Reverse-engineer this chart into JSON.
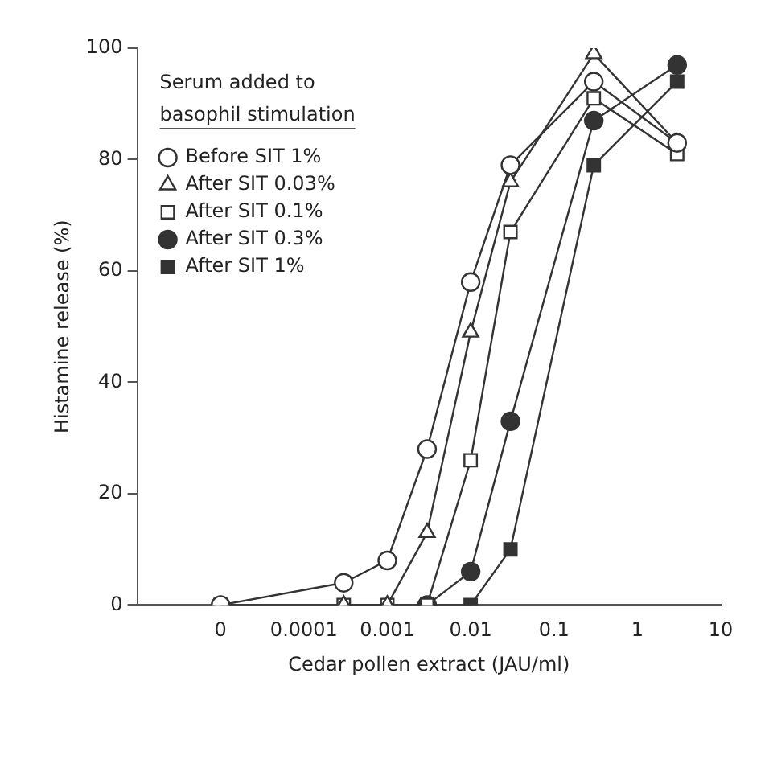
{
  "chart_data": {
    "type": "line",
    "xlabel": "Cedar pollen extract (JAU/ml)",
    "ylabel": "Histamine release (%)",
    "log": "x",
    "legend": "top left",
    "legend_title": "Serum added to\nbasophil stimulation",
    "grid": false,
    "x": [
      1e-05,
      0.0003,
      0.001,
      0.003,
      0.01,
      0.03,
      0.3,
      3
    ],
    "xlim": [
      1e-06,
      10
    ],
    "xticks": [
      {
        "value": 1e-05,
        "label": "0"
      },
      0.0001,
      0.001,
      0.01,
      0.1,
      1,
      10
    ],
    "ylim": [
      0,
      100
    ],
    "yticks": [
      0,
      20,
      40,
      60,
      80,
      100
    ],
    "series": [
      {
        "name": "Before SIT 1%",
        "color": "#ffffff",
        "marker": "circle",
        "values": [
          0,
          4,
          8,
          28,
          58,
          79,
          94,
          83
        ]
      },
      {
        "name": "After SIT 0.03%",
        "color": "#ffffff",
        "marker": "triangle",
        "values": [
          null,
          0,
          0,
          13,
          49,
          76,
          99,
          83
        ]
      },
      {
        "name": "After SIT 0.1%",
        "color": "#ffffff",
        "marker": "square",
        "values": [
          0,
          0,
          0,
          0,
          26,
          67,
          91,
          81
        ]
      },
      {
        "name": "After SIT 0.3%",
        "color": "#333333",
        "marker": "circle",
        "values": [
          null,
          null,
          null,
          0,
          6,
          33,
          87,
          97
        ]
      },
      {
        "name": "After SIT 1%",
        "color": "#333333",
        "marker": "square",
        "values": [
          null,
          null,
          null,
          0,
          0,
          10,
          79,
          94
        ]
      }
    ]
  }
}
